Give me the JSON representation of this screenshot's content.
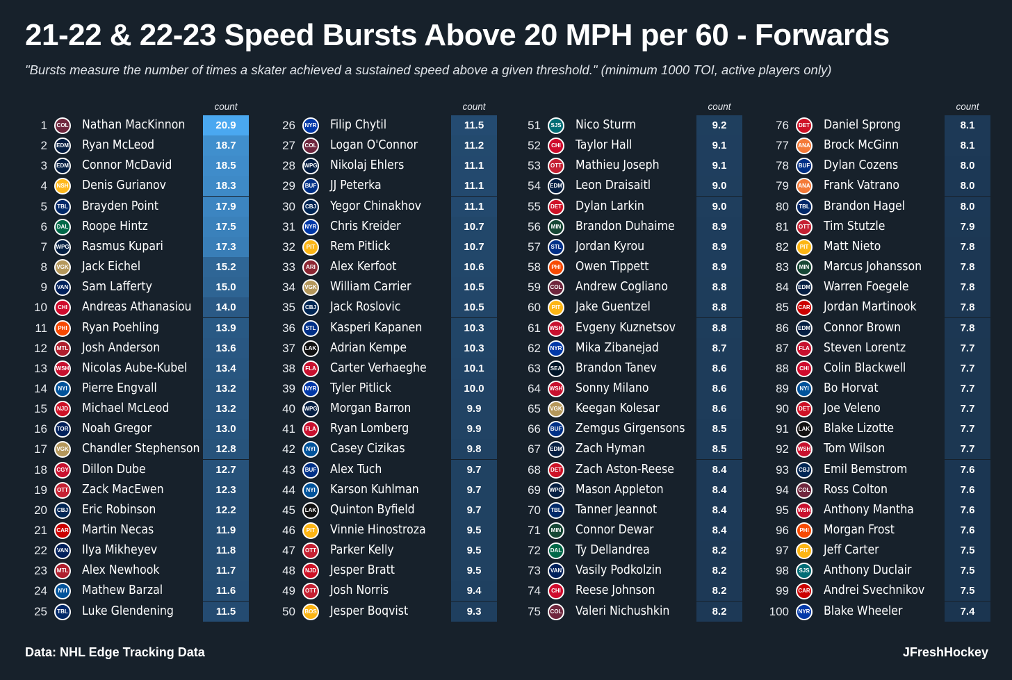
{
  "title": "21-22 & 22-23 Speed Bursts Above 20 MPH per 60 - Forwards",
  "subtitle": "\"Bursts measure the number of times a skater achieved a sustained speed above a given threshold.\" (minimum 1000 TOI, active players only)",
  "footer": {
    "source": "Data: NHL Edge Tracking Data",
    "credit": "JFreshHockey"
  },
  "column_header": "count",
  "colors": {
    "background": "#17212b",
    "high": "#4aa8f0",
    "mid": "#2a5a86",
    "low": "#1b3550",
    "text": "#ffffff"
  },
  "team_colors": {
    "COL": "#6f263d",
    "EDM": "#041e42",
    "NSH": "#ffb81c",
    "TBL": "#002868",
    "DAL": "#006847",
    "WPG": "#041e42",
    "VGK": "#b4975a",
    "VAN": "#00205b",
    "CHI": "#cf0a2c",
    "PHI": "#f74902",
    "MTL": "#af1e2d",
    "WSH": "#c8102e",
    "NYI": "#00539b",
    "NJD": "#ce1126",
    "TOR": "#00205b",
    "CGY": "#c8102e",
    "OTT": "#c52032",
    "CBJ": "#002654",
    "CAR": "#cc0000",
    "NYR": "#0038a8",
    "BUF": "#003087",
    "PIT": "#fcb514",
    "ARI": "#8c2633",
    "STL": "#002f87",
    "LAK": "#111111",
    "FLA": "#c8102e",
    "BOS": "#fcb514",
    "SJS": "#006d75",
    "DET": "#ce1126",
    "MIN": "#154734",
    "SEA": "#001628",
    "ANA": "#f47a38"
  },
  "chart_data": {
    "type": "table",
    "title": "21-22 & 22-23 Speed Bursts Above 20 MPH per 60 - Forwards",
    "columns": [
      "rank",
      "team",
      "player",
      "count"
    ],
    "rows": [
      {
        "rank": 1,
        "team": "COL",
        "player": "Nathan MacKinnon",
        "count": "20.9"
      },
      {
        "rank": 2,
        "team": "EDM",
        "player": "Ryan McLeod",
        "count": "18.7"
      },
      {
        "rank": 3,
        "team": "EDM",
        "player": "Connor McDavid",
        "count": "18.5"
      },
      {
        "rank": 4,
        "team": "NSH",
        "player": "Denis Gurianov",
        "count": "18.3"
      },
      {
        "rank": 5,
        "team": "TBL",
        "player": "Brayden Point",
        "count": "17.9"
      },
      {
        "rank": 6,
        "team": "DAL",
        "player": "Roope Hintz",
        "count": "17.5"
      },
      {
        "rank": 7,
        "team": "WPG",
        "player": "Rasmus Kupari",
        "count": "17.3"
      },
      {
        "rank": 8,
        "team": "VGK",
        "player": "Jack Eichel",
        "count": "15.2"
      },
      {
        "rank": 9,
        "team": "VAN",
        "player": "Sam Lafferty",
        "count": "15.0"
      },
      {
        "rank": 10,
        "team": "CHI",
        "player": "Andreas Athanasiou",
        "count": "14.0"
      },
      {
        "rank": 11,
        "team": "PHI",
        "player": "Ryan Poehling",
        "count": "13.9"
      },
      {
        "rank": 12,
        "team": "MTL",
        "player": "Josh Anderson",
        "count": "13.6"
      },
      {
        "rank": 13,
        "team": "WSH",
        "player": "Nicolas Aube-Kubel",
        "count": "13.4"
      },
      {
        "rank": 14,
        "team": "NYI",
        "player": "Pierre Engvall",
        "count": "13.2"
      },
      {
        "rank": 15,
        "team": "NJD",
        "player": "Michael McLeod",
        "count": "13.2"
      },
      {
        "rank": 16,
        "team": "TOR",
        "player": "Noah Gregor",
        "count": "13.0"
      },
      {
        "rank": 17,
        "team": "VGK",
        "player": "Chandler Stephenson",
        "count": "12.8"
      },
      {
        "rank": 18,
        "team": "CGY",
        "player": "Dillon Dube",
        "count": "12.7"
      },
      {
        "rank": 19,
        "team": "OTT",
        "player": "Zack MacEwen",
        "count": "12.3"
      },
      {
        "rank": 20,
        "team": "CBJ",
        "player": "Eric Robinson",
        "count": "12.2"
      },
      {
        "rank": 21,
        "team": "CAR",
        "player": "Martin Necas",
        "count": "11.9"
      },
      {
        "rank": 22,
        "team": "VAN",
        "player": "Ilya Mikheyev",
        "count": "11.8"
      },
      {
        "rank": 23,
        "team": "MTL",
        "player": "Alex Newhook",
        "count": "11.7"
      },
      {
        "rank": 24,
        "team": "NYI",
        "player": "Mathew Barzal",
        "count": "11.6"
      },
      {
        "rank": 25,
        "team": "TBL",
        "player": "Luke Glendening",
        "count": "11.5"
      },
      {
        "rank": 26,
        "team": "NYR",
        "player": "Filip Chytil",
        "count": "11.5"
      },
      {
        "rank": 27,
        "team": "COL",
        "player": "Logan O'Connor",
        "count": "11.2"
      },
      {
        "rank": 28,
        "team": "WPG",
        "player": "Nikolaj Ehlers",
        "count": "11.1"
      },
      {
        "rank": 29,
        "team": "BUF",
        "player": "JJ Peterka",
        "count": "11.1"
      },
      {
        "rank": 30,
        "team": "CBJ",
        "player": "Yegor Chinakhov",
        "count": "11.1"
      },
      {
        "rank": 31,
        "team": "NYR",
        "player": "Chris Kreider",
        "count": "10.7"
      },
      {
        "rank": 32,
        "team": "PIT",
        "player": "Rem Pitlick",
        "count": "10.7"
      },
      {
        "rank": 33,
        "team": "ARI",
        "player": "Alex Kerfoot",
        "count": "10.6"
      },
      {
        "rank": 34,
        "team": "VGK",
        "player": "William Carrier",
        "count": "10.5"
      },
      {
        "rank": 35,
        "team": "CBJ",
        "player": "Jack Roslovic",
        "count": "10.5"
      },
      {
        "rank": 36,
        "team": "STL",
        "player": "Kasperi Kapanen",
        "count": "10.3"
      },
      {
        "rank": 37,
        "team": "LAK",
        "player": "Adrian Kempe",
        "count": "10.3"
      },
      {
        "rank": 38,
        "team": "FLA",
        "player": "Carter Verhaeghe",
        "count": "10.1"
      },
      {
        "rank": 39,
        "team": "NYR",
        "player": "Tyler Pitlick",
        "count": "10.0"
      },
      {
        "rank": 40,
        "team": "WPG",
        "player": "Morgan Barron",
        "count": "9.9"
      },
      {
        "rank": 41,
        "team": "FLA",
        "player": "Ryan Lomberg",
        "count": "9.9"
      },
      {
        "rank": 42,
        "team": "NYI",
        "player": "Casey Cizikas",
        "count": "9.8"
      },
      {
        "rank": 43,
        "team": "BUF",
        "player": "Alex Tuch",
        "count": "9.7"
      },
      {
        "rank": 44,
        "team": "NYI",
        "player": "Karson Kuhlman",
        "count": "9.7"
      },
      {
        "rank": 45,
        "team": "LAK",
        "player": "Quinton Byfield",
        "count": "9.7"
      },
      {
        "rank": 46,
        "team": "PIT",
        "player": "Vinnie Hinostroza",
        "count": "9.5"
      },
      {
        "rank": 47,
        "team": "OTT",
        "player": "Parker Kelly",
        "count": "9.5"
      },
      {
        "rank": 48,
        "team": "NJD",
        "player": "Jesper Bratt",
        "count": "9.5"
      },
      {
        "rank": 49,
        "team": "OTT",
        "player": "Josh Norris",
        "count": "9.4"
      },
      {
        "rank": 50,
        "team": "BOS",
        "player": "Jesper Boqvist",
        "count": "9.3"
      },
      {
        "rank": 51,
        "team": "SJS",
        "player": "Nico Sturm",
        "count": "9.2"
      },
      {
        "rank": 52,
        "team": "CHI",
        "player": "Taylor Hall",
        "count": "9.1"
      },
      {
        "rank": 53,
        "team": "OTT",
        "player": "Mathieu Joseph",
        "count": "9.1"
      },
      {
        "rank": 54,
        "team": "EDM",
        "player": "Leon Draisaitl",
        "count": "9.0"
      },
      {
        "rank": 55,
        "team": "DET",
        "player": "Dylan Larkin",
        "count": "9.0"
      },
      {
        "rank": 56,
        "team": "MIN",
        "player": "Brandon Duhaime",
        "count": "8.9"
      },
      {
        "rank": 57,
        "team": "STL",
        "player": "Jordan Kyrou",
        "count": "8.9"
      },
      {
        "rank": 58,
        "team": "PHI",
        "player": "Owen Tippett",
        "count": "8.9"
      },
      {
        "rank": 59,
        "team": "COL",
        "player": "Andrew Cogliano",
        "count": "8.8"
      },
      {
        "rank": 60,
        "team": "PIT",
        "player": "Jake Guentzel",
        "count": "8.8"
      },
      {
        "rank": 61,
        "team": "WSH",
        "player": "Evgeny Kuznetsov",
        "count": "8.8"
      },
      {
        "rank": 62,
        "team": "NYR",
        "player": "Mika Zibanejad",
        "count": "8.7"
      },
      {
        "rank": 63,
        "team": "SEA",
        "player": "Brandon Tanev",
        "count": "8.6"
      },
      {
        "rank": 64,
        "team": "WSH",
        "player": "Sonny Milano",
        "count": "8.6"
      },
      {
        "rank": 65,
        "team": "VGK",
        "player": "Keegan Kolesar",
        "count": "8.6"
      },
      {
        "rank": 66,
        "team": "BUF",
        "player": "Zemgus Girgensons",
        "count": "8.5"
      },
      {
        "rank": 67,
        "team": "EDM",
        "player": "Zach Hyman",
        "count": "8.5"
      },
      {
        "rank": 68,
        "team": "DET",
        "player": "Zach Aston-Reese",
        "count": "8.4"
      },
      {
        "rank": 69,
        "team": "WPG",
        "player": "Mason Appleton",
        "count": "8.4"
      },
      {
        "rank": 70,
        "team": "TBL",
        "player": "Tanner Jeannot",
        "count": "8.4"
      },
      {
        "rank": 71,
        "team": "MIN",
        "player": "Connor Dewar",
        "count": "8.4"
      },
      {
        "rank": 72,
        "team": "DAL",
        "player": "Ty Dellandrea",
        "count": "8.2"
      },
      {
        "rank": 73,
        "team": "VAN",
        "player": "Vasily Podkolzin",
        "count": "8.2"
      },
      {
        "rank": 74,
        "team": "CHI",
        "player": "Reese Johnson",
        "count": "8.2"
      },
      {
        "rank": 75,
        "team": "COL",
        "player": "Valeri Nichushkin",
        "count": "8.2"
      },
      {
        "rank": 76,
        "team": "DET",
        "player": "Daniel Sprong",
        "count": "8.1"
      },
      {
        "rank": 77,
        "team": "ANA",
        "player": "Brock McGinn",
        "count": "8.1"
      },
      {
        "rank": 78,
        "team": "BUF",
        "player": "Dylan Cozens",
        "count": "8.0"
      },
      {
        "rank": 79,
        "team": "ANA",
        "player": "Frank Vatrano",
        "count": "8.0"
      },
      {
        "rank": 80,
        "team": "TBL",
        "player": "Brandon Hagel",
        "count": "8.0"
      },
      {
        "rank": 81,
        "team": "OTT",
        "player": "Tim Stutzle",
        "count": "7.9"
      },
      {
        "rank": 82,
        "team": "PIT",
        "player": "Matt Nieto",
        "count": "7.8"
      },
      {
        "rank": 83,
        "team": "MIN",
        "player": "Marcus Johansson",
        "count": "7.8"
      },
      {
        "rank": 84,
        "team": "EDM",
        "player": "Warren Foegele",
        "count": "7.8"
      },
      {
        "rank": 85,
        "team": "CAR",
        "player": "Jordan Martinook",
        "count": "7.8"
      },
      {
        "rank": 86,
        "team": "EDM",
        "player": "Connor Brown",
        "count": "7.8"
      },
      {
        "rank": 87,
        "team": "FLA",
        "player": "Steven Lorentz",
        "count": "7.7"
      },
      {
        "rank": 88,
        "team": "CHI",
        "player": "Colin Blackwell",
        "count": "7.7"
      },
      {
        "rank": 89,
        "team": "NYI",
        "player": "Bo Horvat",
        "count": "7.7"
      },
      {
        "rank": 90,
        "team": "DET",
        "player": "Joe Veleno",
        "count": "7.7"
      },
      {
        "rank": 91,
        "team": "LAK",
        "player": "Blake Lizotte",
        "count": "7.7"
      },
      {
        "rank": 92,
        "team": "WSH",
        "player": "Tom Wilson",
        "count": "7.7"
      },
      {
        "rank": 93,
        "team": "CBJ",
        "player": "Emil Bemstrom",
        "count": "7.6"
      },
      {
        "rank": 94,
        "team": "COL",
        "player": "Ross Colton",
        "count": "7.6"
      },
      {
        "rank": 95,
        "team": "WSH",
        "player": "Anthony Mantha",
        "count": "7.6"
      },
      {
        "rank": 96,
        "team": "PHI",
        "player": "Morgan Frost",
        "count": "7.6"
      },
      {
        "rank": 97,
        "team": "PIT",
        "player": "Jeff Carter",
        "count": "7.5"
      },
      {
        "rank": 98,
        "team": "SJS",
        "player": "Anthony Duclair",
        "count": "7.5"
      },
      {
        "rank": 99,
        "team": "CAR",
        "player": "Andrei Svechnikov",
        "count": "7.5"
      },
      {
        "rank": 100,
        "team": "NYR",
        "player": "Blake Wheeler",
        "count": "7.4"
      }
    ]
  }
}
